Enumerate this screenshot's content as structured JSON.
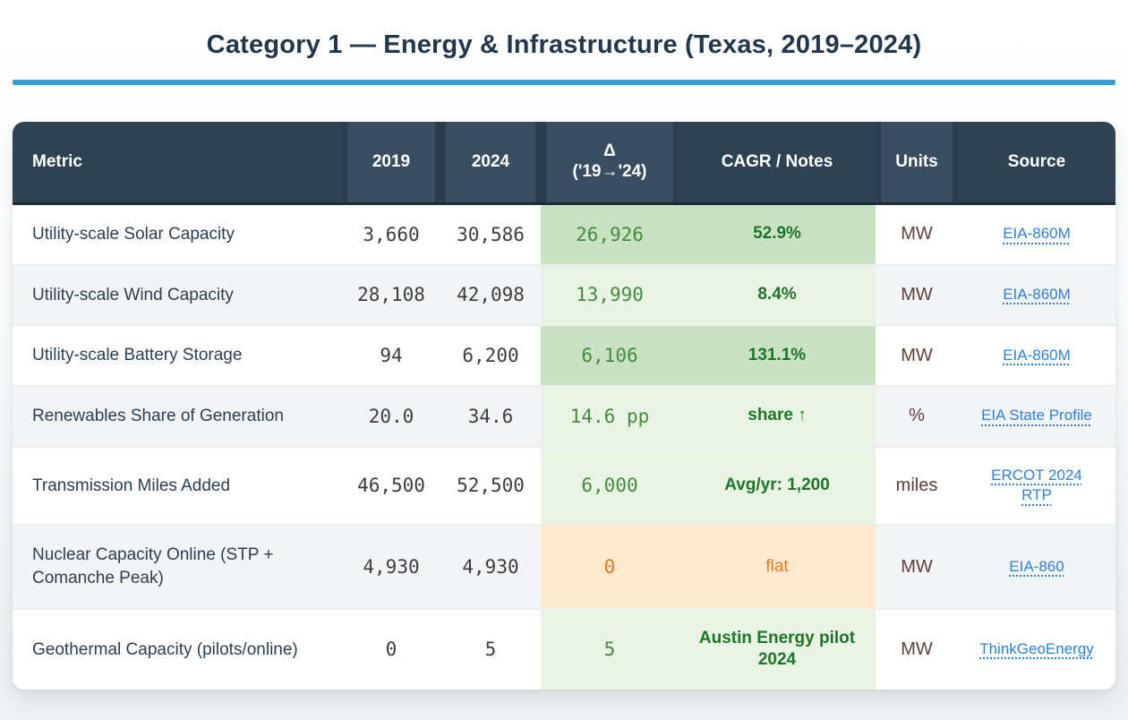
{
  "page": {
    "title": "Category 1 — Energy & Infrastructure (Texas, 2019–2024)"
  },
  "colors": {
    "accent_rule": "#3e9bd6",
    "header_bg": "#2f4254",
    "header_bg_light": "#3a4d60",
    "strong_green_bg": "#c9e2c4",
    "light_green_bg": "#e8f3e4",
    "orange_bg": "#fdeacd",
    "delta_green_text": "#478a3f",
    "notes_green_text": "#1e7529",
    "orange_text": "#e2731f",
    "units_brown_text": "#5d4037",
    "link_blue": "#2f7fd3",
    "title_navy": "#24374a"
  },
  "table": {
    "columns": [
      {
        "label": "Metric"
      },
      {
        "label": "2019"
      },
      {
        "label": "2024"
      },
      {
        "label": "Δ",
        "sublabel": "('19→'24)"
      },
      {
        "label": "CAGR / Notes"
      },
      {
        "label": "Units"
      },
      {
        "label": "Source"
      }
    ],
    "rows": [
      {
        "metric": "Utility-scale Solar Capacity",
        "y2019": "3,660",
        "y2024": "30,586",
        "delta": "26,926",
        "notes": "52.9%",
        "notes_bold": true,
        "units": "MW",
        "source": "EIA-860M",
        "tone": "strong-green"
      },
      {
        "metric": "Utility-scale Wind Capacity",
        "y2019": "28,108",
        "y2024": "42,098",
        "delta": "13,990",
        "notes": "8.4%",
        "notes_bold": true,
        "units": "MW",
        "source": "EIA-860M",
        "tone": "light-green"
      },
      {
        "metric": "Utility-scale Battery Storage",
        "y2019": "94",
        "y2024": "6,200",
        "delta": "6,106",
        "notes": "131.1%",
        "notes_bold": true,
        "units": "MW",
        "source": "EIA-860M",
        "tone": "strong-green"
      },
      {
        "metric": "Renewables Share of Generation",
        "y2019": "20.0",
        "y2024": "34.6",
        "delta": "14.6 pp",
        "notes": "share ↑",
        "notes_bold": true,
        "units": "%",
        "source": "EIA State Profile",
        "tone": "light-green"
      },
      {
        "metric": "Transmission Miles Added",
        "y2019": "46,500",
        "y2024": "52,500",
        "delta": "6,000",
        "notes": "Avg/yr: 1,200",
        "notes_bold": true,
        "units": "miles",
        "source": "ERCOT 2024 RTP",
        "tone": "light-green"
      },
      {
        "metric": "Nuclear Capacity Online (STP + Comanche Peak)",
        "y2019": "4,930",
        "y2024": "4,930",
        "delta": "0",
        "notes": "flat",
        "notes_bold": false,
        "units": "MW",
        "source": "EIA-860",
        "tone": "orange"
      },
      {
        "metric": "Geothermal Capacity (pilots/online)",
        "y2019": "0",
        "y2024": "5",
        "delta": "5",
        "notes": "Austin Energy pilot 2024",
        "notes_bold": true,
        "units": "MW",
        "source": "ThinkGeoEnergy",
        "tone": "light-green"
      }
    ]
  }
}
